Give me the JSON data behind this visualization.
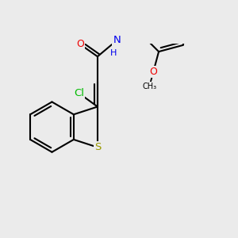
{
  "bg_color": "#ebebeb",
  "bond_color": "#000000",
  "bond_width": 1.5,
  "atom_colors": {
    "Cl": "#00bb00",
    "S": "#999900",
    "N": "#0000ee",
    "O": "#ee0000",
    "C": "#000000"
  },
  "font_size": 9.5,
  "xlim": [
    -2.7,
    2.7
  ],
  "ylim": [
    -2.1,
    2.1
  ]
}
